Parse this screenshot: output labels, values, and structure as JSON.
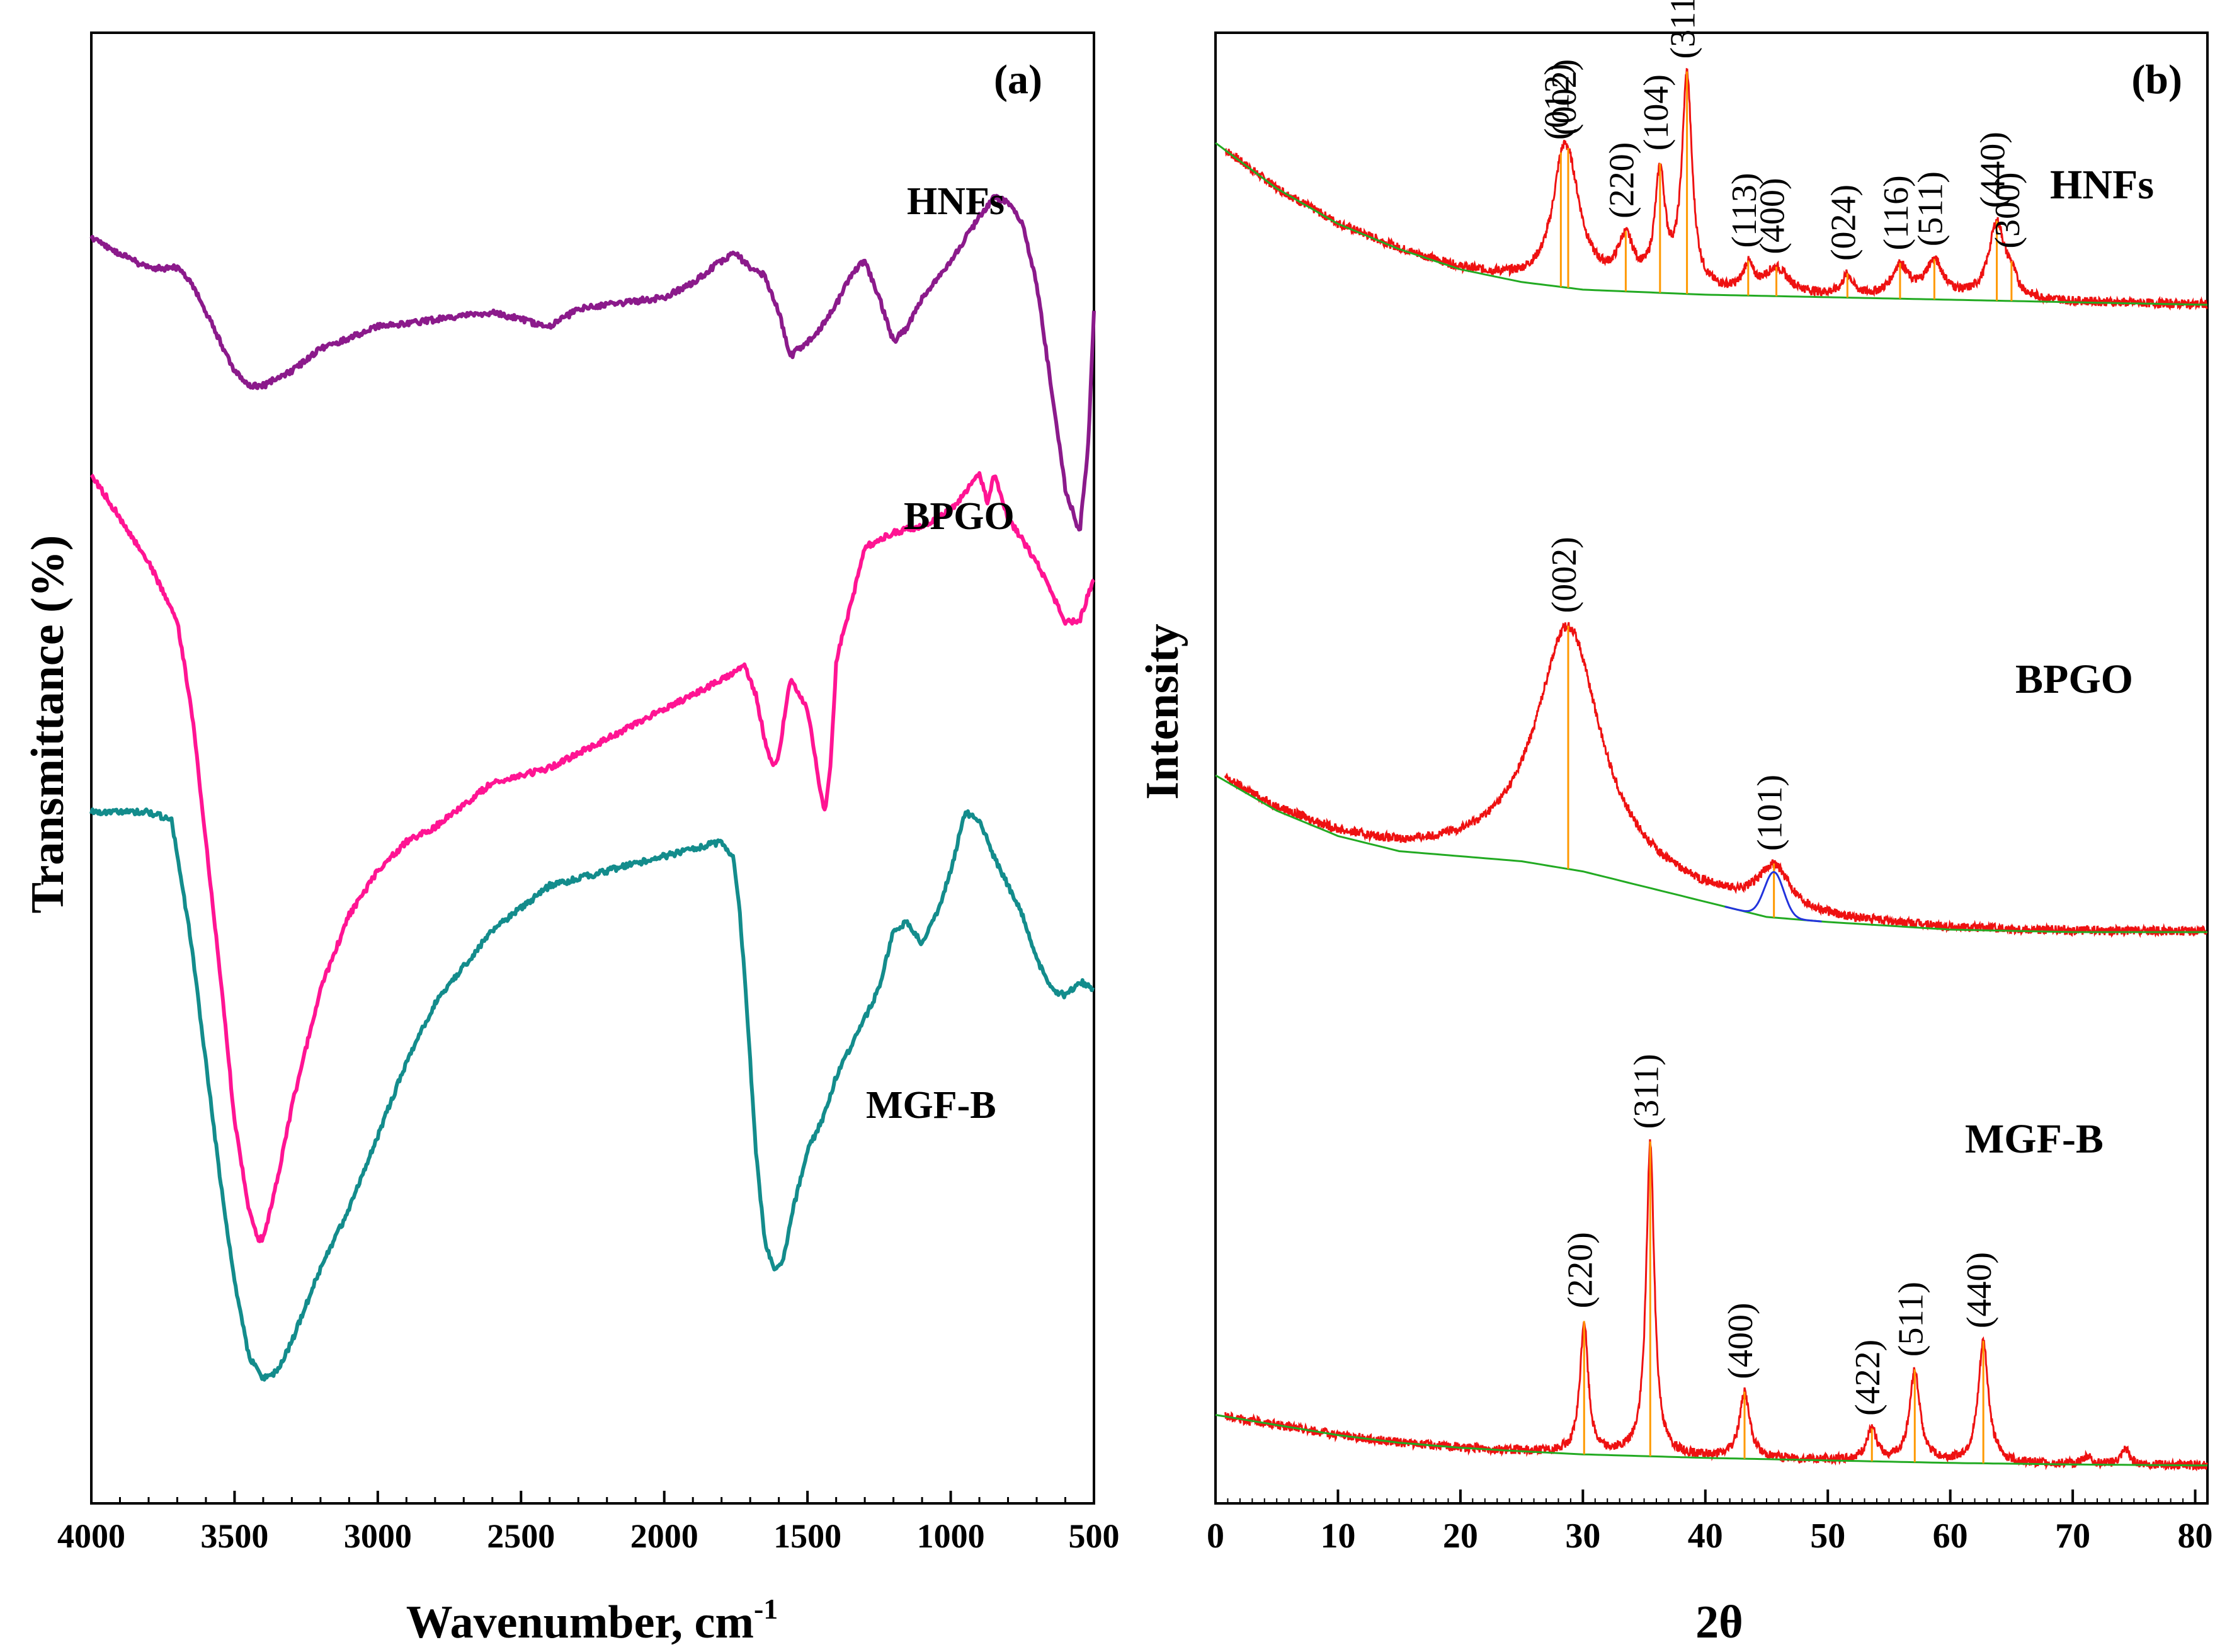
{
  "chart_data": [
    {
      "panel": "(a)",
      "type": "line",
      "xlabel": "Wavenumber, cm",
      "xlabel_sup": "-1",
      "ylabel": "Transmittance (%)",
      "xlim": [
        4000,
        500
      ],
      "xticks": [
        4000,
        3500,
        3000,
        2500,
        2000,
        1500,
        1000,
        500
      ],
      "colors": {
        "HNFs": "#8B1A8B",
        "BPGO": "#FF1493",
        "MGF-B": "#138C8C"
      },
      "series": [
        {
          "name": "HNFs",
          "x": [
            4000,
            3900,
            3800,
            3700,
            3650,
            3600,
            3550,
            3500,
            3450,
            3400,
            3350,
            3300,
            3200,
            3000,
            2800,
            2600,
            2400,
            2300,
            2200,
            2000,
            1900,
            1800,
            1750,
            1700,
            1650,
            1600,
            1560,
            1500,
            1450,
            1400,
            1350,
            1300,
            1250,
            1200,
            1150,
            1100,
            1000,
            900,
            850,
            800,
            750,
            700,
            650,
            600,
            550,
            520,
            500
          ],
          "y": [
            0.86,
            0.85,
            0.84,
            0.84,
            0.83,
            0.81,
            0.79,
            0.77,
            0.76,
            0.76,
            0.765,
            0.77,
            0.785,
            0.8,
            0.805,
            0.81,
            0.8,
            0.812,
            0.815,
            0.82,
            0.83,
            0.845,
            0.85,
            0.84,
            0.835,
            0.81,
            0.78,
            0.79,
            0.8,
            0.815,
            0.835,
            0.845,
            0.82,
            0.79,
            0.8,
            0.82,
            0.845,
            0.875,
            0.888,
            0.885,
            0.87,
            0.83,
            0.76,
            0.69,
            0.66,
            0.72,
            0.81
          ]
        },
        {
          "name": "BPGO",
          "x": [
            4000,
            3900,
            3800,
            3700,
            3650,
            3600,
            3550,
            3500,
            3450,
            3420,
            3400,
            3350,
            3300,
            3250,
            3200,
            3100,
            3000,
            2900,
            2800,
            2600,
            2400,
            2200,
            2000,
            1800,
            1720,
            1700,
            1680,
            1650,
            1620,
            1600,
            1560,
            1500,
            1460,
            1440,
            1420,
            1400,
            1380,
            1350,
            1300,
            1200,
            1100,
            1000,
            900,
            870,
            850,
            800,
            700,
            650,
            600,
            550,
            500
          ],
          "y": [
            0.7,
            0.67,
            0.64,
            0.6,
            0.54,
            0.45,
            0.36,
            0.26,
            0.2,
            0.18,
            0.18,
            0.22,
            0.27,
            0.31,
            0.35,
            0.4,
            0.43,
            0.45,
            0.46,
            0.49,
            0.5,
            0.52,
            0.54,
            0.56,
            0.57,
            0.56,
            0.55,
            0.52,
            0.5,
            0.51,
            0.56,
            0.54,
            0.49,
            0.47,
            0.5,
            0.57,
            0.59,
            0.61,
            0.65,
            0.66,
            0.665,
            0.675,
            0.7,
            0.68,
            0.7,
            0.67,
            0.64,
            0.62,
            0.6,
            0.6,
            0.63
          ]
        },
        {
          "name": "MGF-B",
          "x": [
            4000,
            3800,
            3720,
            3700,
            3650,
            3600,
            3550,
            3500,
            3450,
            3400,
            3350,
            3300,
            3200,
            3100,
            3000,
            2900,
            2800,
            2600,
            2400,
            2200,
            2000,
            1900,
            1800,
            1760,
            1740,
            1720,
            1700,
            1680,
            1650,
            1620,
            1600,
            1580,
            1550,
            1500,
            1450,
            1400,
            1350,
            1300,
            1250,
            1200,
            1150,
            1100,
            1050,
            1000,
            950,
            900,
            850,
            800,
            750,
            700,
            650,
            600,
            550,
            500
          ],
          "y": [
            0.47,
            0.47,
            0.465,
            0.44,
            0.38,
            0.3,
            0.22,
            0.15,
            0.1,
            0.085,
            0.09,
            0.11,
            0.16,
            0.2,
            0.25,
            0.3,
            0.34,
            0.39,
            0.42,
            0.43,
            0.44,
            0.445,
            0.45,
            0.44,
            0.41,
            0.36,
            0.3,
            0.24,
            0.18,
            0.16,
            0.16,
            0.17,
            0.2,
            0.24,
            0.26,
            0.29,
            0.31,
            0.33,
            0.35,
            0.39,
            0.395,
            0.38,
            0.4,
            0.43,
            0.47,
            0.465,
            0.44,
            0.42,
            0.4,
            0.37,
            0.35,
            0.345,
            0.355,
            0.35
          ]
        }
      ]
    },
    {
      "panel": "(b)",
      "type": "line",
      "xlabel": "2θ",
      "ylabel": "Intensity",
      "xlim": [
        0,
        81
      ],
      "xticks": [
        0,
        10,
        20,
        30,
        40,
        50,
        60,
        70,
        80
      ],
      "colors": {
        "pattern": "#EE1111",
        "background": "#22AA22",
        "peak_marker": "#FF9900",
        "fit": "#2233DD"
      },
      "series": [
        {
          "name": "HNFs",
          "background": [
            [
              0,
              0.95
            ],
            [
              5,
              0.86
            ],
            [
              10,
              0.79
            ],
            [
              15,
              0.74
            ],
            [
              20,
              0.7
            ],
            [
              25,
              0.675
            ],
            [
              30,
              0.66
            ],
            [
              40,
              0.65
            ],
            [
              50,
              0.645
            ],
            [
              60,
              0.64
            ],
            [
              70,
              0.635
            ],
            [
              81,
              0.63
            ]
          ],
          "peaks": [
            [
              28.2,
              0.08,
              0.8
            ],
            [
              28.8,
              0.22,
              1.3
            ],
            [
              33.5,
              0.09,
              0.8
            ],
            [
              36.3,
              0.22,
              0.5
            ],
            [
              38.5,
              0.42,
              0.5
            ],
            [
              43.5,
              0.05,
              0.5
            ],
            [
              45.8,
              0.05,
              1.2
            ],
            [
              51.6,
              0.04,
              0.5
            ],
            [
              55.9,
              0.06,
              0.8
            ],
            [
              58.7,
              0.07,
              0.9
            ],
            [
              63.8,
              0.15,
              0.8
            ],
            [
              65.0,
              0.03,
              0.5
            ]
          ],
          "peak_labels": [
            "(012)",
            "(002)",
            "(220)",
            "(104)",
            "(311)",
            "(113)",
            "(400)",
            "(024)",
            "(116)",
            "(511)",
            "(440)",
            "(300)"
          ]
        },
        {
          "name": "BPGO",
          "background": [
            [
              0,
              0.5
            ],
            [
              5,
              0.43
            ],
            [
              10,
              0.38
            ],
            [
              15,
              0.35
            ],
            [
              20,
              0.34
            ],
            [
              25,
              0.33
            ],
            [
              30,
              0.31
            ],
            [
              35,
              0.28
            ],
            [
              40,
              0.25
            ],
            [
              45,
              0.22
            ],
            [
              50,
              0.21
            ],
            [
              60,
              0.195
            ],
            [
              70,
              0.19
            ],
            [
              81,
              0.19
            ]
          ],
          "peaks": [
            [
              28.8,
              0.48,
              3.2
            ],
            [
              45.6,
              0.09,
              1.6
            ]
          ],
          "peak_labels": [
            "(002)",
            "(101)"
          ]
        },
        {
          "name": "MGF-B",
          "background": [
            [
              0,
              0.15
            ],
            [
              5,
              0.13
            ],
            [
              10,
              0.11
            ],
            [
              15,
              0.095
            ],
            [
              20,
              0.085
            ],
            [
              25,
              0.078
            ],
            [
              30,
              0.072
            ],
            [
              40,
              0.065
            ],
            [
              50,
              0.06
            ],
            [
              60,
              0.055
            ],
            [
              70,
              0.052
            ],
            [
              81,
              0.05
            ]
          ],
          "peaks": [
            [
              30.1,
              0.26,
              0.4
            ],
            [
              35.5,
              0.62,
              0.4
            ],
            [
              43.2,
              0.13,
              0.5
            ],
            [
              53.6,
              0.06,
              0.5
            ],
            [
              57.1,
              0.18,
              0.5
            ],
            [
              62.7,
              0.24,
              0.5
            ],
            [
              71.2,
              0.015,
              0.4
            ],
            [
              74.3,
              0.03,
              0.4
            ]
          ],
          "peak_labels": [
            "(220)",
            "(311)",
            "(400)",
            "(422)",
            "(511)",
            "(440)"
          ]
        }
      ]
    }
  ]
}
